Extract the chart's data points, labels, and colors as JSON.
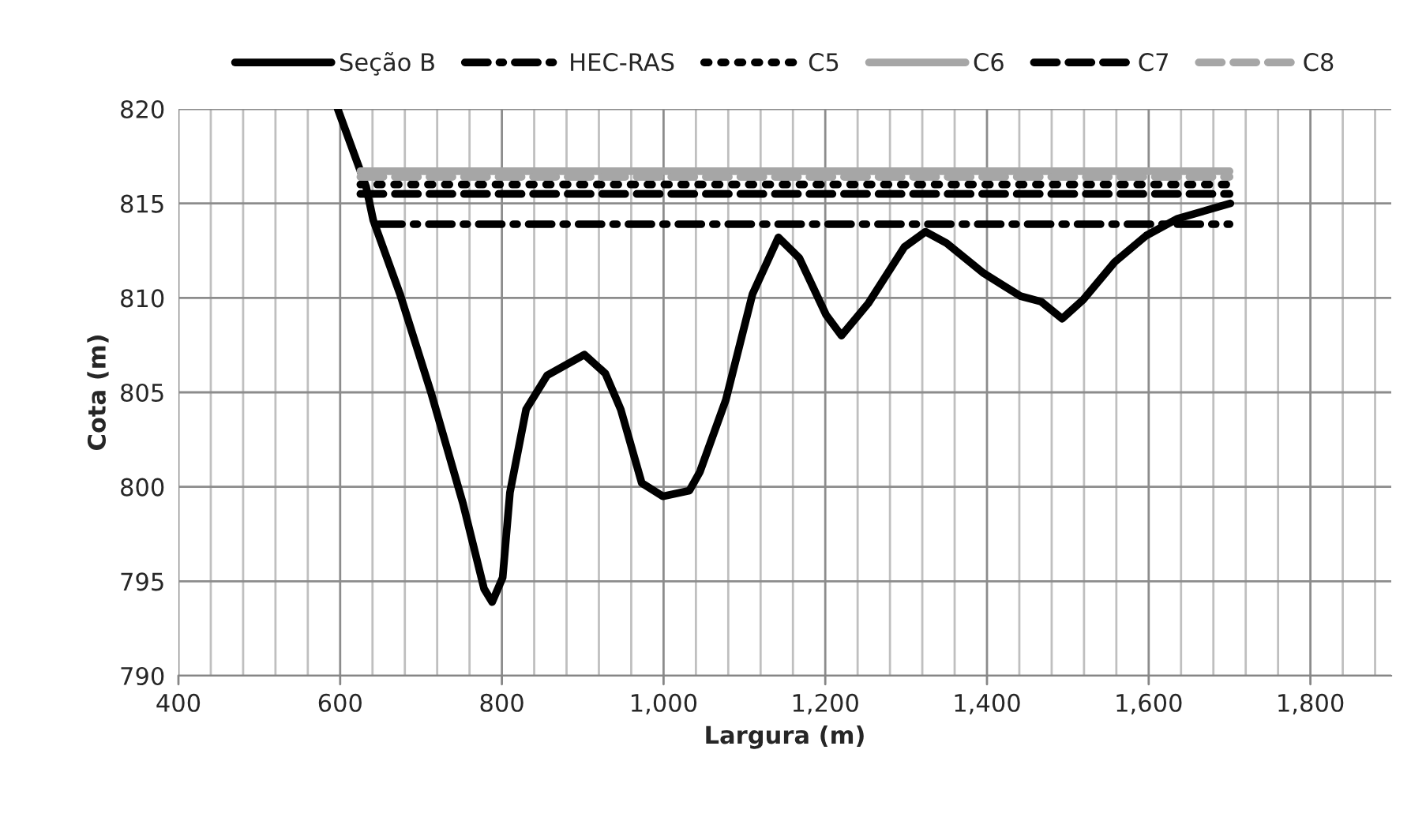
{
  "chart_data": {
    "type": "line",
    "xlabel": "Largura (m)",
    "ylabel": "Cota (m)",
    "xlim": [
      400,
      1900
    ],
    "ylim": [
      790,
      820
    ],
    "xticks": [
      {
        "value": 400,
        "label": "400"
      },
      {
        "value": 440,
        "label": null
      },
      {
        "value": 480,
        "label": null
      },
      {
        "value": 520,
        "label": null
      },
      {
        "value": 560,
        "label": null
      },
      {
        "value": 600,
        "label": "600"
      },
      {
        "value": 640,
        "label": null
      },
      {
        "value": 680,
        "label": null
      },
      {
        "value": 720,
        "label": null
      },
      {
        "value": 760,
        "label": null
      },
      {
        "value": 800,
        "label": "800"
      },
      {
        "value": 840,
        "label": null
      },
      {
        "value": 880,
        "label": null
      },
      {
        "value": 920,
        "label": null
      },
      {
        "value": 960,
        "label": null
      },
      {
        "value": 1000,
        "label": "1,000"
      },
      {
        "value": 1040,
        "label": null
      },
      {
        "value": 1080,
        "label": null
      },
      {
        "value": 1120,
        "label": null
      },
      {
        "value": 1160,
        "label": null
      },
      {
        "value": 1200,
        "label": "1,200"
      },
      {
        "value": 1240,
        "label": null
      },
      {
        "value": 1280,
        "label": null
      },
      {
        "value": 1320,
        "label": null
      },
      {
        "value": 1360,
        "label": null
      },
      {
        "value": 1400,
        "label": "1,400"
      },
      {
        "value": 1440,
        "label": null
      },
      {
        "value": 1480,
        "label": null
      },
      {
        "value": 1520,
        "label": null
      },
      {
        "value": 1560,
        "label": null
      },
      {
        "value": 1600,
        "label": "1,600"
      },
      {
        "value": 1640,
        "label": null
      },
      {
        "value": 1680,
        "label": null
      },
      {
        "value": 1720,
        "label": null
      },
      {
        "value": 1760,
        "label": null
      },
      {
        "value": 1800,
        "label": "1,800"
      },
      {
        "value": 1840,
        "label": null
      },
      {
        "value": 1880,
        "label": null
      }
    ],
    "yticks": [
      790,
      795,
      800,
      805,
      810,
      815,
      820
    ],
    "grid": true,
    "legend": "top",
    "marker": "none",
    "series": [
      {
        "name": "Seção B",
        "color": "#000000",
        "line_style": "solid",
        "x": [
          597,
          632,
          641,
          674,
          713,
          752,
          778,
          788,
          801,
          810,
          830,
          856,
          902,
          928,
          947,
          973,
          999,
          1032,
          1045,
          1077,
          1110,
          1142,
          1168,
          1201,
          1220,
          1253,
          1298,
          1324,
          1350,
          1396,
          1441,
          1467,
          1493,
          1519,
          1558,
          1597,
          1636,
          1701
        ],
        "values": [
          820,
          815.9,
          814.1,
          810.2,
          804.9,
          799.1,
          794.6,
          793.9,
          795.2,
          799.7,
          804.1,
          805.9,
          807.0,
          806.0,
          804.1,
          800.2,
          799.5,
          799.8,
          800.8,
          804.6,
          810.2,
          813.2,
          812.1,
          809.1,
          808.0,
          809.7,
          812.7,
          813.5,
          812.9,
          811.3,
          810.1,
          809.8,
          808.9,
          809.9,
          811.9,
          813.3,
          814.2,
          815.0
        ]
      },
      {
        "name": "HEC-RAS",
        "color": "#000000",
        "line_style": "dashdot",
        "x": [
          648,
          1700
        ],
        "values": [
          813.9,
          813.9
        ]
      },
      {
        "name": "C5",
        "color": "#000000",
        "line_style": "dotted",
        "x": [
          625,
          1700
        ],
        "values": [
          816.0,
          816.0
        ]
      },
      {
        "name": "C6",
        "color": "#a6a6a6",
        "line_style": "solid",
        "x": [
          625,
          1700
        ],
        "values": [
          816.7,
          816.7
        ]
      },
      {
        "name": "C7",
        "color": "#000000",
        "line_style": "dashed",
        "x": [
          625,
          1700
        ],
        "values": [
          815.5,
          815.5
        ]
      },
      {
        "name": "C8",
        "color": "#a6a6a6",
        "line_style": "dashed",
        "x": [
          625,
          1700
        ],
        "values": [
          816.4,
          816.4
        ]
      }
    ]
  }
}
